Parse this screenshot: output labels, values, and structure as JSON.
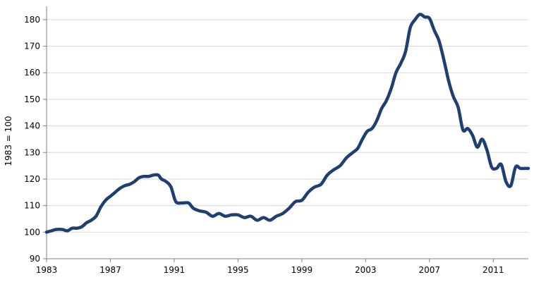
{
  "chart_data": {
    "type": "line",
    "title": "",
    "xlabel": "",
    "ylabel": "1983 = 100",
    "xlim": [
      1983,
      2013.2
    ],
    "ylim": [
      90,
      185
    ],
    "grid": "horizontal",
    "legend": "none",
    "x_ticks": [
      1983,
      1987,
      1991,
      1995,
      1999,
      2003,
      2007,
      2011
    ],
    "x_tick_labels": [
      "1983",
      "1987",
      "1991",
      "1995",
      "1999",
      "2003",
      "2007",
      "2011"
    ],
    "y_ticks": [
      90,
      100,
      110,
      120,
      130,
      140,
      150,
      160,
      170,
      180
    ],
    "y_tick_labels": [
      "90",
      "100",
      "110",
      "120",
      "130",
      "140",
      "150",
      "160",
      "170",
      "180"
    ],
    "colors": {
      "series": "#1f3f73",
      "gridline": "#d9d9d9",
      "axis": "#808080"
    },
    "series": [
      {
        "name": "",
        "x": [
          1983.0,
          1983.3,
          1983.6,
          1984.0,
          1984.3,
          1984.6,
          1984.9,
          1985.2,
          1985.5,
          1985.8,
          1986.1,
          1986.4,
          1986.7,
          1987.0,
          1987.3,
          1987.6,
          1987.9,
          1988.2,
          1988.5,
          1988.8,
          1989.1,
          1989.4,
          1989.7,
          1990.0,
          1990.2,
          1990.5,
          1990.8,
          1991.1,
          1991.5,
          1991.9,
          1992.2,
          1992.6,
          1993.0,
          1993.4,
          1993.8,
          1994.2,
          1994.6,
          1995.0,
          1995.4,
          1995.8,
          1996.2,
          1996.6,
          1997.0,
          1997.4,
          1997.8,
          1998.2,
          1998.6,
          1999.0,
          1999.4,
          1999.8,
          2000.2,
          2000.6,
          2001.0,
          2001.4,
          2001.8,
          2002.2,
          2002.5,
          2002.8,
          2003.1,
          2003.4,
          2003.7,
          2004.0,
          2004.3,
          2004.6,
          2004.9,
          2005.2,
          2005.5,
          2005.8,
          2006.1,
          2006.4,
          2006.7,
          2007.0,
          2007.3,
          2007.6,
          2007.9,
          2008.2,
          2008.5,
          2008.8,
          2009.1,
          2009.4,
          2009.7,
          2010.0,
          2010.3,
          2010.6,
          2010.9,
          2011.2,
          2011.5,
          2011.8,
          2012.1,
          2012.4,
          2012.7,
          2013.0,
          2013.2
        ],
        "y": [
          100,
          100.5,
          101,
          101,
          100.5,
          101.5,
          101.5,
          102,
          103.5,
          104.5,
          106,
          109.5,
          112,
          113.5,
          115,
          116.5,
          117.5,
          118,
          119,
          120.5,
          121,
          121,
          121.5,
          121.5,
          120,
          119,
          117,
          111.5,
          111,
          111,
          109,
          108,
          107.5,
          106,
          107,
          106,
          106.5,
          106.5,
          105.5,
          106,
          104.5,
          105.5,
          104.5,
          106,
          107,
          109,
          111.5,
          112,
          115,
          117,
          118,
          121.5,
          123.5,
          125,
          128,
          130,
          131.5,
          135,
          138,
          139,
          142,
          146.5,
          149.5,
          154,
          160,
          163.5,
          168,
          177,
          180,
          182,
          181,
          180.5,
          176,
          172,
          165,
          157,
          151,
          147,
          138.5,
          139,
          136.5,
          132,
          135,
          131,
          124.5,
          124,
          125.5,
          119,
          117.5,
          124.5,
          124,
          124,
          124
        ]
      }
    ]
  }
}
